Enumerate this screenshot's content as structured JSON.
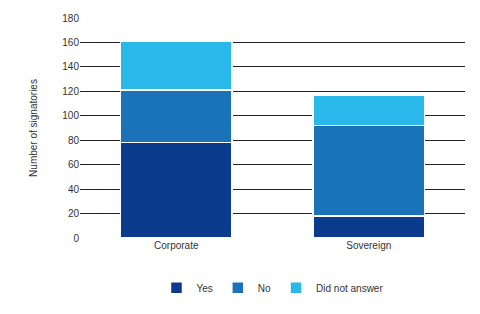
{
  "chart_data": {
    "type": "bar",
    "stacked": true,
    "categories": [
      "Corporate",
      "Sovereign"
    ],
    "series": [
      {
        "name": "Yes",
        "color": "#0b3b8c",
        "values": [
          78,
          18
        ]
      },
      {
        "name": "No",
        "color": "#1a73b9",
        "values": [
          43,
          74
        ]
      },
      {
        "name": "Did not answer",
        "color": "#2ab7e9",
        "values": [
          40,
          25
        ]
      }
    ],
    "y_label": "Number of signatories",
    "ylim": [
      0,
      180
    ],
    "yticks": [
      0,
      20,
      40,
      60,
      80,
      100,
      120,
      140,
      160,
      180
    ],
    "grid": true,
    "legend": "bottom"
  }
}
